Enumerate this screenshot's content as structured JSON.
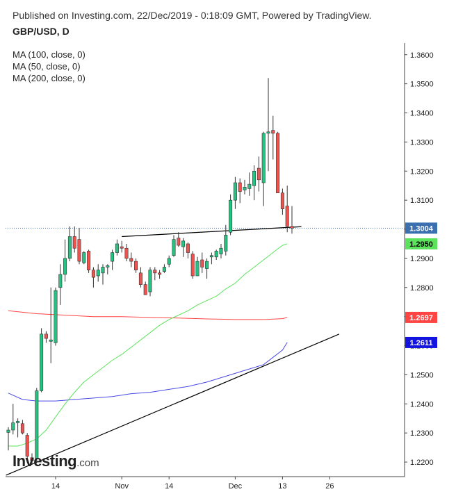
{
  "header": {
    "published": "Published on Investing.com, 22/Dec/2019 - 0:18:09 GMT, Powered by TradingView.",
    "symbol": "GBP/USD, D"
  },
  "legend": [
    "MA (100, close, 0)",
    "MA (50, close, 0)",
    "MA (200, close, 0)"
  ],
  "logo": {
    "name": "Investing",
    "suffix": ".com"
  },
  "colors": {
    "up": "#26c281",
    "down": "#ef5350",
    "ma50": "#5be35b",
    "ma100": "#ff4444",
    "ma200": "#4848e8",
    "trend": "#000000",
    "last_price_line": "#3a6fb0"
  },
  "chart_data": {
    "type": "candlestick",
    "title": "GBP/USD, D",
    "ylim": [
      1.215,
      1.364
    ],
    "y_ticks": [
      1.22,
      1.23,
      1.24,
      1.25,
      1.26,
      1.27,
      1.28,
      1.29,
      1.3,
      1.31,
      1.32,
      1.33,
      1.34,
      1.35,
      1.36
    ],
    "y_tick_labels": [
      "1.2200",
      "1.2300",
      "1.2400",
      "1.2500",
      "1.2600",
      "1.2700",
      "1.2800",
      "1.2900",
      "1.3000",
      "1.3100",
      "1.3200",
      "1.3300",
      "1.3400",
      "1.3500",
      "1.3600"
    ],
    "x_ticks": [
      {
        "index": 10,
        "label": "14"
      },
      {
        "index": 24,
        "label": "Nov"
      },
      {
        "index": 34,
        "label": "14"
      },
      {
        "index": 48,
        "label": "Dec"
      },
      {
        "index": 58,
        "label": "13"
      },
      {
        "index": 68,
        "label": "26"
      }
    ],
    "candles": [
      [
        1.2302,
        1.232,
        1.224,
        1.231
      ],
      [
        1.231,
        1.24,
        1.2295,
        1.2335
      ],
      [
        1.2335,
        1.235,
        1.2285,
        1.234
      ],
      [
        1.2332,
        1.2345,
        1.2295,
        1.23
      ],
      [
        1.2292,
        1.23,
        1.2198,
        1.222
      ],
      [
        1.2215,
        1.223,
        1.2195,
        1.2205
      ],
      [
        1.2212,
        1.2455,
        1.2205,
        1.2445
      ],
      [
        1.2445,
        1.266,
        1.244,
        1.264
      ],
      [
        1.264,
        1.265,
        1.261,
        1.2625
      ],
      [
        1.2615,
        1.28,
        1.254,
        1.262
      ],
      [
        1.261,
        1.28,
        1.26,
        1.279
      ],
      [
        1.28,
        1.288,
        1.274,
        1.2845
      ],
      [
        1.2845,
        1.2965,
        1.282,
        1.29
      ],
      [
        1.29,
        1.301,
        1.289,
        1.2975
      ],
      [
        1.2975,
        1.301,
        1.292,
        1.2935
      ],
      [
        1.2965,
        1.3005,
        1.288,
        1.289
      ],
      [
        1.2885,
        1.2925,
        1.288,
        1.292
      ],
      [
        1.2925,
        1.293,
        1.285,
        1.286
      ],
      [
        1.286,
        1.287,
        1.28,
        1.2835
      ],
      [
        1.284,
        1.288,
        1.282,
        1.286
      ],
      [
        1.285,
        1.288,
        1.281,
        1.287
      ],
      [
        1.287,
        1.288,
        1.2845,
        1.2875
      ],
      [
        1.289,
        1.293,
        1.286,
        1.292
      ],
      [
        1.292,
        1.2965,
        1.291,
        1.295
      ],
      [
        1.294,
        1.296,
        1.292,
        1.2935
      ],
      [
        1.2935,
        1.295,
        1.289,
        1.29
      ],
      [
        1.29,
        1.292,
        1.287,
        1.289
      ],
      [
        1.289,
        1.29,
        1.285,
        1.286
      ],
      [
        1.285,
        1.287,
        1.28,
        1.281
      ],
      [
        1.281,
        1.282,
        1.2775,
        1.2775
      ],
      [
        1.2785,
        1.287,
        1.277,
        1.286
      ],
      [
        1.286,
        1.287,
        1.2825,
        1.285
      ],
      [
        1.285,
        1.286,
        1.283,
        1.2845
      ],
      [
        1.2855,
        1.288,
        1.285,
        1.287
      ],
      [
        1.288,
        1.291,
        1.287,
        1.29
      ],
      [
        1.291,
        1.298,
        1.2905,
        1.2965
      ],
      [
        1.297,
        1.299,
        1.294,
        1.2945
      ],
      [
        1.294,
        1.297,
        1.2905,
        1.296
      ],
      [
        1.295,
        1.2955,
        1.29,
        1.292
      ],
      [
        1.2915,
        1.2925,
        1.283,
        1.284
      ],
      [
        1.284,
        1.2905,
        1.284,
        1.289
      ],
      [
        1.2895,
        1.292,
        1.285,
        1.287
      ],
      [
        1.2865,
        1.29,
        1.283,
        1.289
      ],
      [
        1.2905,
        1.292,
        1.288,
        1.291
      ],
      [
        1.2905,
        1.293,
        1.2895,
        1.2925
      ],
      [
        1.2915,
        1.295,
        1.29,
        1.2935
      ],
      [
        1.2925,
        1.3015,
        1.291,
        1.298
      ],
      [
        1.299,
        1.312,
        1.298,
        1.31
      ],
      [
        1.31,
        1.318,
        1.307,
        1.316
      ],
      [
        1.316,
        1.3175,
        1.309,
        1.313
      ],
      [
        1.3135,
        1.317,
        1.312,
        1.3145
      ],
      [
        1.314,
        1.3195,
        1.3115,
        1.3155
      ],
      [
        1.315,
        1.322,
        1.31,
        1.32
      ],
      [
        1.321,
        1.325,
        1.313,
        1.317
      ],
      [
        1.316,
        1.3335,
        1.308,
        1.333
      ],
      [
        1.333,
        1.352,
        1.32,
        1.3335
      ],
      [
        1.334,
        1.339,
        1.324,
        1.333
      ],
      [
        1.333,
        1.3335,
        1.313,
        1.3125
      ],
      [
        1.3125,
        1.314,
        1.305,
        1.307
      ],
      [
        1.308,
        1.315,
        1.299,
        1.301
      ],
      [
        1.301,
        1.308,
        1.2985,
        1.3004
      ]
    ],
    "ma50": {
      "name": "MA (50, close, 0)",
      "points": [
        [
          0,
          1.2255
        ],
        [
          2,
          1.2255
        ],
        [
          4,
          1.2265
        ],
        [
          6,
          1.228
        ],
        [
          8,
          1.231
        ],
        [
          10,
          1.2355
        ],
        [
          12,
          1.24
        ],
        [
          14,
          1.244
        ],
        [
          16,
          1.2475
        ],
        [
          18,
          1.25
        ],
        [
          20,
          1.2525
        ],
        [
          22,
          1.255
        ],
        [
          24,
          1.257
        ],
        [
          26,
          1.2595
        ],
        [
          28,
          1.262
        ],
        [
          30,
          1.2645
        ],
        [
          32,
          1.267
        ],
        [
          34,
          1.269
        ],
        [
          36,
          1.2705
        ],
        [
          38,
          1.272
        ],
        [
          40,
          1.274
        ],
        [
          42,
          1.2755
        ],
        [
          44,
          1.277
        ],
        [
          46,
          1.2795
        ],
        [
          48,
          1.2815
        ],
        [
          50,
          1.2845
        ],
        [
          52,
          1.287
        ],
        [
          54,
          1.2895
        ],
        [
          56,
          1.292
        ],
        [
          58,
          1.2945
        ],
        [
          59,
          1.295
        ]
      ]
    },
    "ma100": {
      "name": "MA (100, close, 0)",
      "points": [
        [
          0,
          1.272
        ],
        [
          6,
          1.271
        ],
        [
          12,
          1.2705
        ],
        [
          18,
          1.27
        ],
        [
          24,
          1.27
        ],
        [
          30,
          1.2697
        ],
        [
          36,
          1.2695
        ],
        [
          42,
          1.2692
        ],
        [
          48,
          1.269
        ],
        [
          54,
          1.269
        ],
        [
          58,
          1.2693
        ],
        [
          59,
          1.2697
        ]
      ]
    },
    "ma200": {
      "name": "MA (200, close, 0)",
      "points": [
        [
          0,
          1.2437
        ],
        [
          3,
          1.2415
        ],
        [
          6,
          1.241
        ],
        [
          10,
          1.241
        ],
        [
          14,
          1.2415
        ],
        [
          18,
          1.242
        ],
        [
          22,
          1.2425
        ],
        [
          26,
          1.2435
        ],
        [
          30,
          1.244
        ],
        [
          34,
          1.245
        ],
        [
          38,
          1.246
        ],
        [
          42,
          1.2475
        ],
        [
          46,
          1.2495
        ],
        [
          50,
          1.2515
        ],
        [
          54,
          1.2535
        ],
        [
          56,
          1.256
        ],
        [
          58,
          1.2585
        ],
        [
          59,
          1.2611
        ]
      ]
    },
    "trendlines": [
      {
        "points": [
          [
            -0.5,
            1.2155
          ],
          [
            70,
            1.264
          ]
        ]
      },
      {
        "points": [
          [
            24,
            1.2975
          ],
          [
            62,
            1.3009
          ]
        ]
      }
    ],
    "hline_from_x0": [
      {
        "from": -0.5,
        "to": 62,
        "y": 1.3004
      }
    ],
    "price_tags": [
      {
        "value": 1.3004,
        "label": "1.3004",
        "color": "#3a6fb0"
      },
      {
        "value": 1.295,
        "label": "1.2950",
        "color": "#5be35b"
      },
      {
        "value": 1.2697,
        "label": "1.2697",
        "color": "#ff4444"
      },
      {
        "value": 1.2611,
        "label": "1.2611",
        "color": "#1414e0"
      }
    ]
  }
}
